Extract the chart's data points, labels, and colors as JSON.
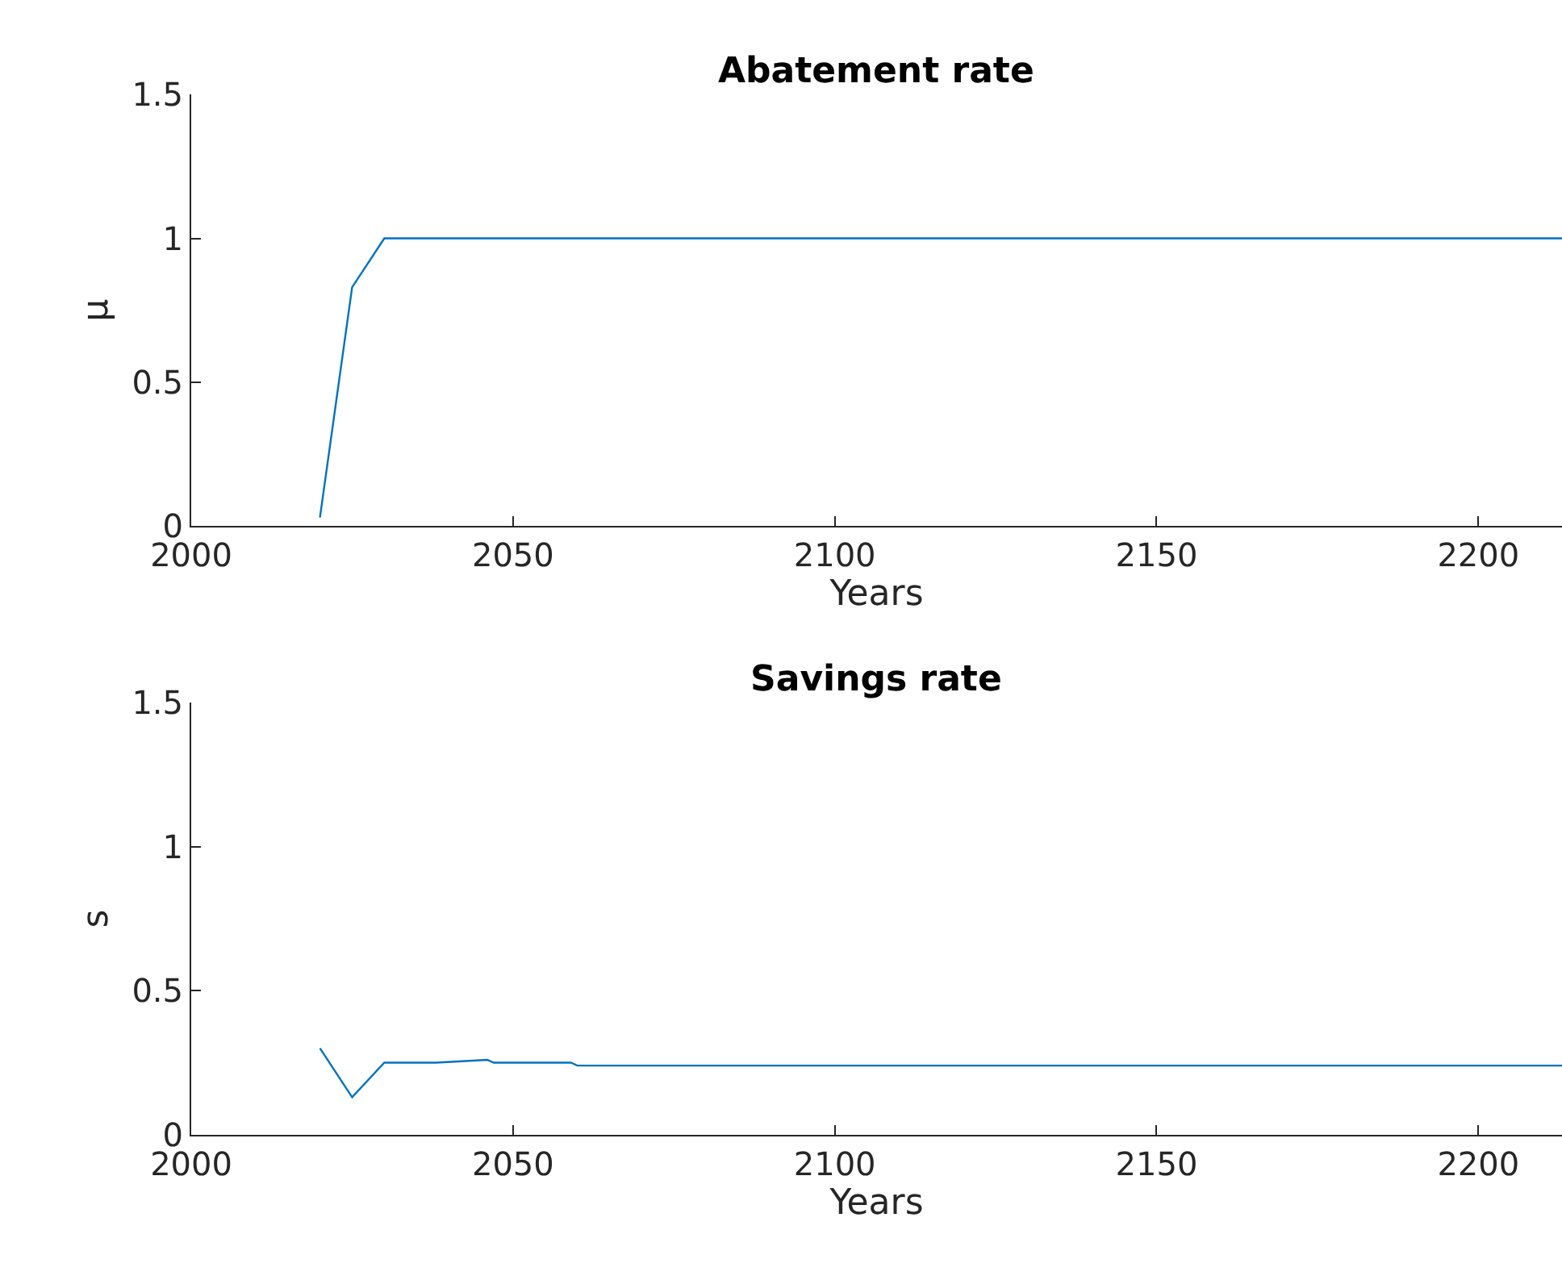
{
  "chart_data": [
    {
      "type": "line",
      "title": "Abatement rate",
      "xlabel": "Years",
      "ylabel": "μ",
      "x": [
        2020,
        2025,
        2030,
        2213
      ],
      "series": [
        {
          "color": "#0072bd",
          "values": [
            0.03,
            0.83,
            1.0,
            1.0
          ]
        }
      ],
      "xlim": [
        2000,
        2213
      ],
      "xticks": [
        2000,
        2050,
        2100,
        2150,
        2200
      ],
      "ylim": [
        0,
        1.5
      ],
      "yticks": [
        0,
        0.5,
        1,
        1.5
      ]
    },
    {
      "type": "line",
      "title": "Savings rate",
      "xlabel": "Years",
      "ylabel": "s",
      "x": [
        2020,
        2025,
        2030,
        2038,
        2046,
        2047,
        2059,
        2060,
        2213
      ],
      "series": [
        {
          "color": "#0072bd",
          "values": [
            0.3,
            0.13,
            0.25,
            0.25,
            0.26,
            0.25,
            0.25,
            0.24,
            0.24
          ]
        }
      ],
      "xlim": [
        2000,
        2213
      ],
      "xticks": [
        2000,
        2050,
        2100,
        2150,
        2200
      ],
      "ylim": [
        0,
        1.5
      ],
      "yticks": [
        0,
        0.5,
        1,
        1.5
      ]
    }
  ]
}
